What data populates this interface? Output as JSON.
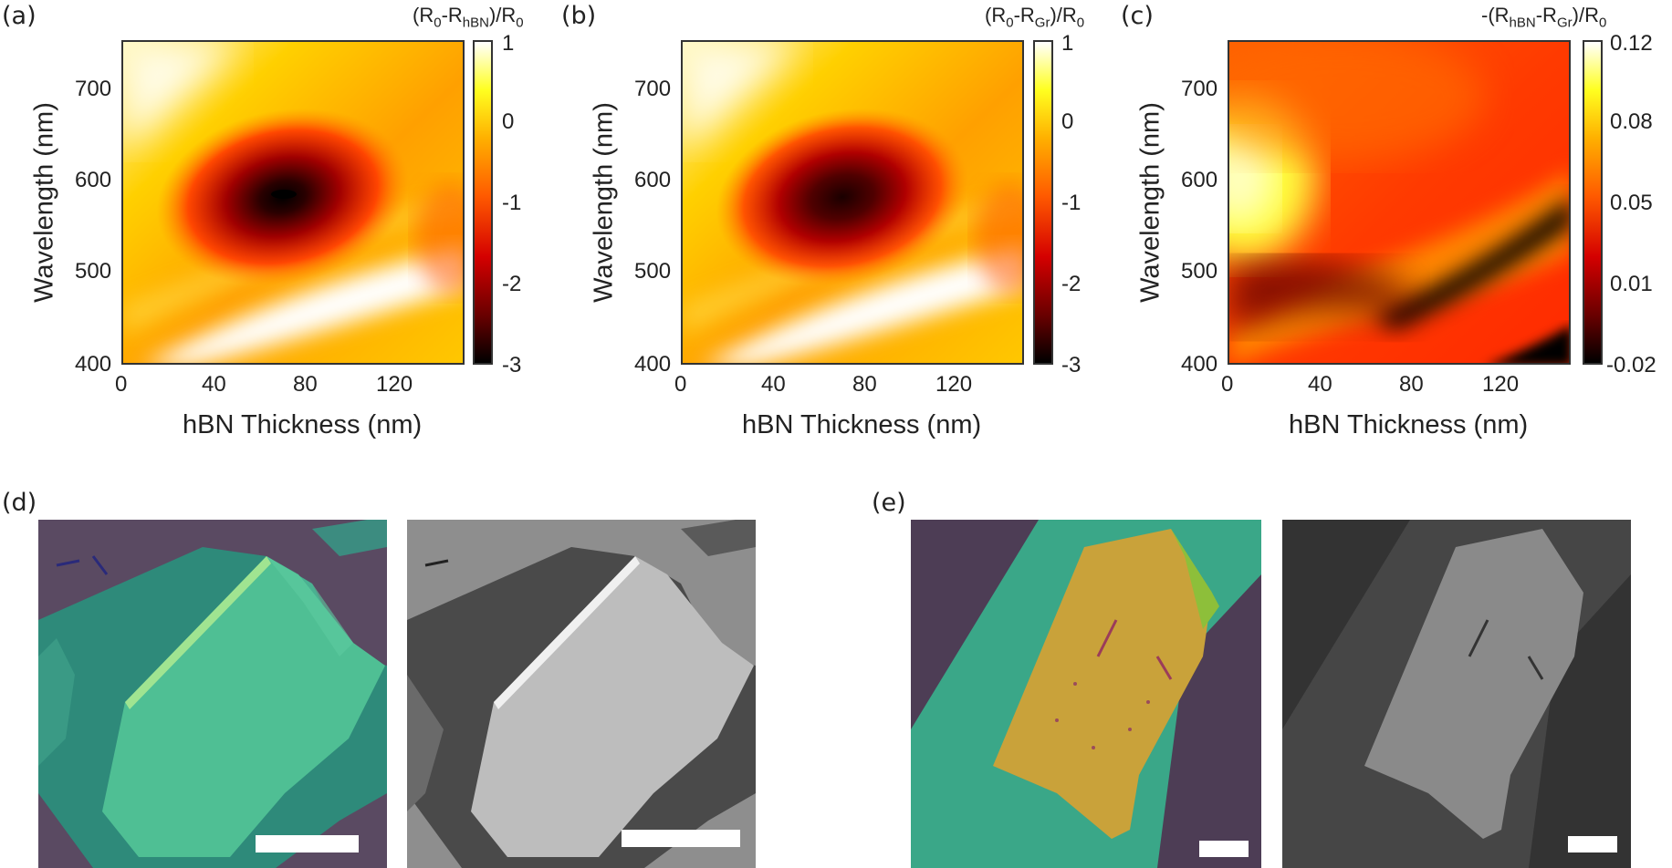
{
  "panels": {
    "a": {
      "label": "(a)",
      "cbar_title": {
        "pre": "(R",
        "s1": "0",
        "mid": "-R",
        "s2": "hBN",
        "post": ")/R",
        "s3": "0"
      },
      "cbar_ticks": [
        "1",
        "0",
        "-1",
        "-2",
        "-3"
      ]
    },
    "b": {
      "label": "(b)",
      "cbar_title": {
        "pre": "(R",
        "s1": "0",
        "mid": "-R",
        "s2": "Gr",
        "post": ")/R",
        "s3": "0"
      },
      "cbar_ticks": [
        "1",
        "0",
        "-1",
        "-2",
        "-3"
      ]
    },
    "c": {
      "label": "(c)",
      "cbar_title": {
        "pre": "-(R",
        "s1": "hBN",
        "mid": "-R",
        "s2": "Gr",
        "post": ")/R",
        "s3": "0"
      },
      "cbar_ticks": [
        "0.12",
        "0.08",
        "0.05",
        "0.01",
        "-0.02"
      ]
    },
    "d": {
      "label": "(d)"
    },
    "e": {
      "label": "(e)"
    }
  },
  "axes": {
    "xlabel": "hBN Thickness (nm)",
    "ylabel": "Wavelength (nm)",
    "xticks": [
      "0",
      "40",
      "80",
      "120"
    ],
    "yticks": [
      "700",
      "600",
      "500",
      "400"
    ]
  },
  "chart_data": [
    {
      "type": "heatmap",
      "title": "(R0-RhBN)/R0",
      "xlabel": "hBN Thickness (nm)",
      "ylabel": "Wavelength (nm)",
      "xlim": [
        0,
        150
      ],
      "ylim": [
        400,
        750
      ],
      "colorbar_range": [
        -3,
        1
      ],
      "colorbar_ticks": [
        1,
        0,
        -1,
        -2,
        -3
      ],
      "minimum": {
        "x": 68,
        "y": 585,
        "value": -3
      }
    },
    {
      "type": "heatmap",
      "title": "(R0-RGr)/R0",
      "xlabel": "hBN Thickness (nm)",
      "ylabel": "Wavelength (nm)",
      "xlim": [
        0,
        150
      ],
      "ylim": [
        400,
        750
      ],
      "colorbar_range": [
        -3,
        1
      ],
      "colorbar_ticks": [
        1,
        0,
        -1,
        -2,
        -3
      ],
      "minimum": {
        "x": 68,
        "y": 585,
        "value": -2.8
      }
    },
    {
      "type": "heatmap",
      "title": "-(RhBN-RGr)/R0",
      "xlabel": "hBN Thickness (nm)",
      "ylabel": "Wavelength (nm)",
      "xlim": [
        0,
        150
      ],
      "ylim": [
        400,
        750
      ],
      "colorbar_range": [
        -0.02,
        0.12
      ],
      "colorbar_ticks": [
        0.12,
        0.08,
        0.05,
        0.01,
        -0.02
      ]
    }
  ]
}
